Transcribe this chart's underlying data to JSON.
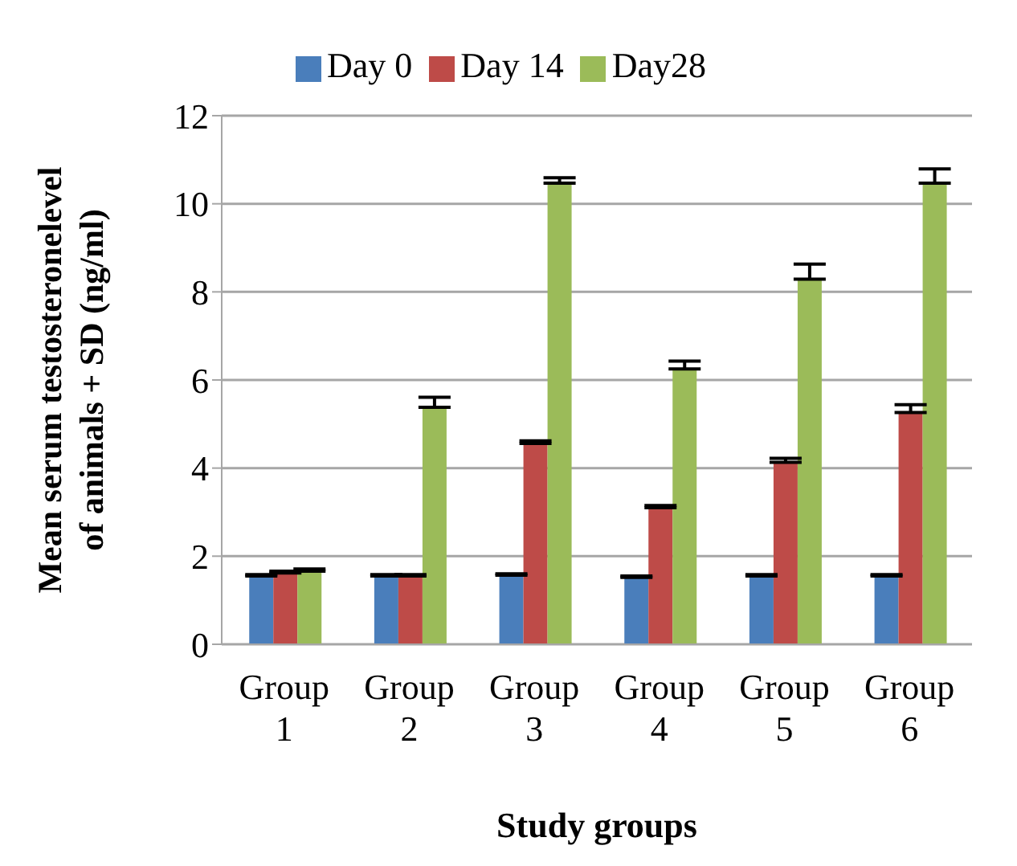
{
  "chart_data": {
    "type": "bar",
    "xlabel": "Study groups",
    "ylabel": "Mean serum testosteronelevel of animals + SD (ng/ml)",
    "categories": [
      "Group 1",
      "Group 2",
      "Group 3",
      "Group 4",
      "Group 5",
      "Group 6"
    ],
    "series": [
      {
        "name": "Day 0",
        "color": "#4a7ebb",
        "values": [
          1.55,
          1.55,
          1.57,
          1.52,
          1.55,
          1.55
        ],
        "errors": [
          [
            1.55,
            1.58
          ],
          [
            1.55,
            1.58
          ],
          [
            1.57,
            1.6
          ],
          [
            1.52,
            1.55
          ],
          [
            1.55,
            1.58
          ],
          [
            1.55,
            1.58
          ]
        ]
      },
      {
        "name": "Day 14",
        "color": "#be4b48",
        "values": [
          1.62,
          1.55,
          4.56,
          3.1,
          4.13,
          5.26
        ],
        "errors": [
          [
            1.62,
            1.66
          ],
          [
            1.55,
            1.58
          ],
          [
            4.56,
            4.62
          ],
          [
            3.1,
            3.15
          ],
          [
            4.13,
            4.22
          ],
          [
            5.26,
            5.44
          ]
        ]
      },
      {
        "name": "Day28",
        "color": "#9bbb59",
        "values": [
          1.66,
          5.38,
          10.47,
          6.25,
          8.29,
          10.47
        ],
        "errors": [
          [
            1.66,
            1.71
          ],
          [
            5.38,
            5.61
          ],
          [
            10.47,
            10.59
          ],
          [
            6.25,
            6.43
          ],
          [
            8.29,
            8.63
          ],
          [
            10.47,
            10.79
          ]
        ]
      }
    ],
    "ylim": [
      0,
      12
    ],
    "yticks": [
      0,
      2,
      4,
      6,
      8,
      10,
      12
    ],
    "grid": "y",
    "legend": "top"
  }
}
